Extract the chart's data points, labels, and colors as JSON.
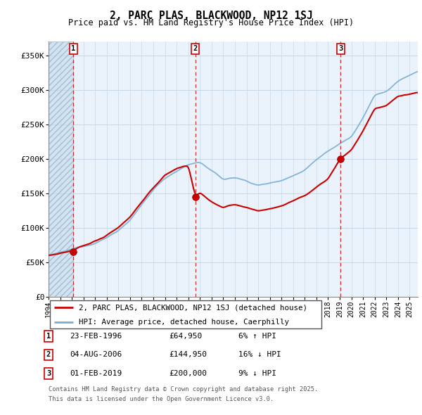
{
  "title": "2, PARC PLAS, BLACKWOOD, NP12 1SJ",
  "subtitle": "Price paid vs. HM Land Registry's House Price Index (HPI)",
  "xlim_left": 1994.0,
  "xlim_right": 2025.7,
  "ylim_bottom": 0,
  "ylim_top": 370000,
  "yticks": [
    0,
    50000,
    100000,
    150000,
    200000,
    250000,
    300000,
    350000
  ],
  "ytick_labels": [
    "£0",
    "£50K",
    "£100K",
    "£150K",
    "£200K",
    "£250K",
    "£300K",
    "£350K"
  ],
  "sale1_year": 1996.14,
  "sale1_price": 64950,
  "sale2_year": 2006.59,
  "sale2_price": 144950,
  "sale3_year": 2019.08,
  "sale3_price": 200000,
  "legend_property": "2, PARC PLAS, BLACKWOOD, NP12 1SJ (detached house)",
  "legend_hpi": "HPI: Average price, detached house, Caerphilly",
  "table_entries": [
    {
      "num": "1",
      "date": "23-FEB-1996",
      "price": "£64,950",
      "change": "6% ↑ HPI"
    },
    {
      "num": "2",
      "date": "04-AUG-2006",
      "price": "£144,950",
      "change": "16% ↓ HPI"
    },
    {
      "num": "3",
      "date": "01-FEB-2019",
      "price": "£200,000",
      "change": "9% ↓ HPI"
    }
  ],
  "footer1": "Contains HM Land Registry data © Crown copyright and database right 2025.",
  "footer2": "This data is licensed under the Open Government Licence v3.0.",
  "property_color": "#cc0000",
  "hpi_color": "#7aaed6",
  "hatch_bg_color": "#ddeeff",
  "hatch_pattern_color": "#aaccee",
  "grid_color": "#c8d8e8",
  "chart_bg_color": "#eaf3fb",
  "hatch_region_color": "#d0e4f4"
}
